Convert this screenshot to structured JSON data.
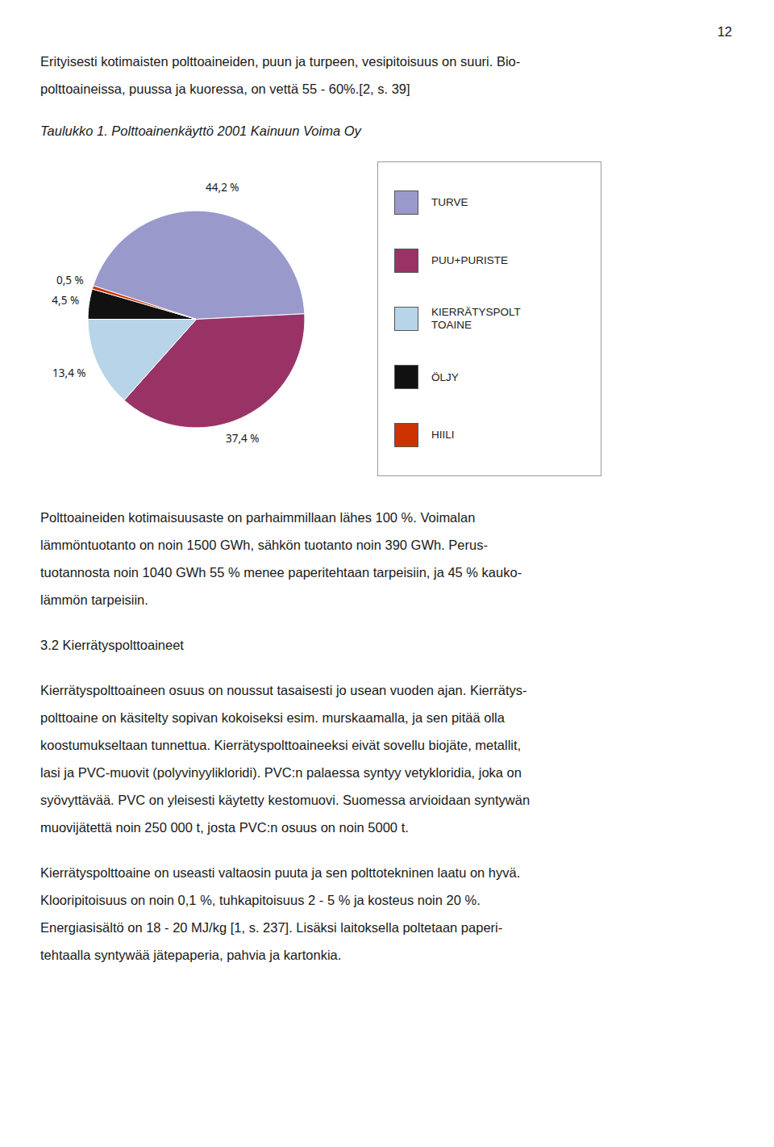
{
  "chart_data": {
    "type": "pie",
    "title": "Taulukko 1.  Polttoainenkäyttö 2001 Kainuun Voima Oy",
    "categories": [
      "TURVE",
      "PUU+PURISTE",
      "KIERRÄTYSPOLT\nTOAINE",
      "ÖLJY",
      "HIILI"
    ],
    "values": [
      44.2,
      37.4,
      13.4,
      4.5,
      0.5
    ],
    "value_labels": [
      "44,2 %",
      "37,4 %",
      "13,4 %",
      "4,5 %",
      "0,5 %"
    ],
    "colors": [
      "#9999cc",
      "#993366",
      "#b8d4e8",
      "#111111",
      "#cc3300"
    ],
    "data_labels": true,
    "legend": "right",
    "annotations": [
      [
        "12"
      ],
      [
        "Erityisesti kotimaisten polttoaineiden, puun ja turpeen, vesipitoisuus on suuri.  Bio-",
        "polttoaineissa, puussa ja kuoressa, on vettä 55 - 60%.[2, s. 39]"
      ],
      [
        "Polttoaineiden kotimaisuusaste on parhaimmillaan lähes 100 %. Voimalan",
        "lämmöntuotanto on noin 1500 GWh, sähkön tuotanto noin 390 GWh. Perus-",
        "tuotannosta noin 1040 GWh 55 % menee paperitehtaan tarpeisiin, ja 45 % kauko-",
        "lämmön tarpeisiin."
      ],
      [
        "3.2 Kierrätyspolttoaineet"
      ],
      [
        "Kierrätyspolttoaineen osuus on noussut tasaisesti jo usean vuoden ajan. Kierrätys-",
        "polttoaine on käsitelty sopivan kokoiseksi esim. murskaamalla, ja sen pitää olla",
        "koostumukseltaan tunnettua. Kierrätyspolttoaineeksi eivät sovellu biojäte, metallit,",
        "lasi ja PVC-muovit (polyvinyylikloridi). PVC:n palaessa syntyy vetykloridia, joka on",
        "syövyttävää. PVC on yleisesti käytetty kestomuovi. Suomessa arvioidaan syntywän",
        "muovijätettä noin 250 000 t, josta PVC:n osuus on noin 5000 t."
      ],
      [
        "Kierrätyspolttoaine on useasti valtaosin puuta ja sen polttotekninen laatu on hyvä.",
        "Klooripitoisuus on noin 0,1 %, tuhkapitoisuus 2 - 5 % ja kosteus noin 20 %.",
        "Energiasisältö on 18 - 20 MJ/kg [1,  s. 237]. Lisäksi laitoksella poltetaan paperi-",
        "tehtaalla syntywää jätepaperia,  pahvia ja kartonkia."
      ]
    ]
  }
}
